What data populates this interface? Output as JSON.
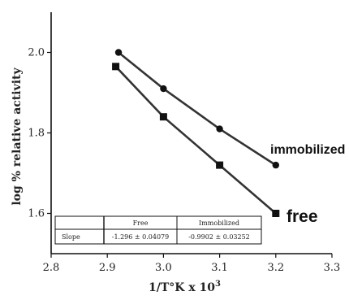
{
  "chart_data": {
    "type": "line",
    "title": "",
    "xlabel": "1/T°K x 10",
    "xlabel_sup": "3",
    "ylabel": "log % relative activity",
    "xlim": [
      2.8,
      3.3
    ],
    "ylim": [
      1.5,
      2.1
    ],
    "x_ticks": [
      "2.8",
      "2.9",
      "3.0",
      "3.1",
      "3.2",
      "3.3"
    ],
    "y_ticks": [
      "1.6",
      "1.8",
      "2.0"
    ],
    "grid": false,
    "series": [
      {
        "name": "immobilized",
        "marker": "circle",
        "color": "#111111",
        "x": [
          2.92,
          3.0,
          3.1,
          3.2
        ],
        "y": [
          2.0,
          1.91,
          1.81,
          1.72
        ]
      },
      {
        "name": "free",
        "marker": "square",
        "color": "#111111",
        "x": [
          2.915,
          3.0,
          3.1,
          3.2
        ],
        "y": [
          1.965,
          1.84,
          1.72,
          1.6
        ]
      }
    ],
    "table": {
      "headers": [
        "",
        "Free",
        "Immobilized"
      ],
      "rows": [
        [
          "Slope",
          "-1.296 ± 0.04079",
          "-0.9902 ± 0.03252"
        ]
      ]
    }
  }
}
